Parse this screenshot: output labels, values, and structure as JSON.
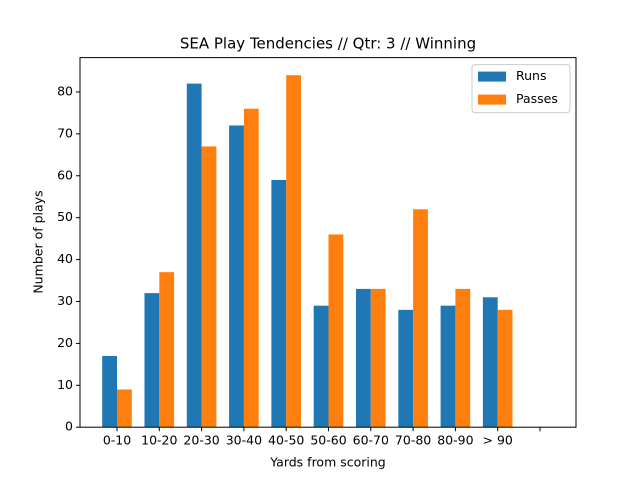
{
  "chart_data": {
    "type": "bar",
    "title": "SEA Play Tendencies // Qtr: 3 // Winning",
    "x_label": "Yards from scoring",
    "y_label": "Number of plays",
    "categories": [
      "0-10",
      "10-20",
      "20-30",
      "30-40",
      "40-50",
      "50-60",
      "60-70",
      "70-80",
      "80-90",
      "> 90",
      null
    ],
    "series": [
      {
        "name": "Runs",
        "color": "#1f77b4",
        "values": [
          17,
          32,
          82,
          72,
          59,
          29,
          33,
          28,
          29,
          31,
          null
        ]
      },
      {
        "name": "Passes",
        "color": "#ff7f0e",
        "values": [
          9,
          37,
          67,
          76,
          84,
          46,
          33,
          52,
          33,
          28,
          null
        ]
      }
    ],
    "ylim": [
      0,
      88.2
    ],
    "yticks": [
      0,
      10,
      20,
      30,
      40,
      50,
      60,
      70,
      80
    ],
    "legend": "upper right"
  }
}
